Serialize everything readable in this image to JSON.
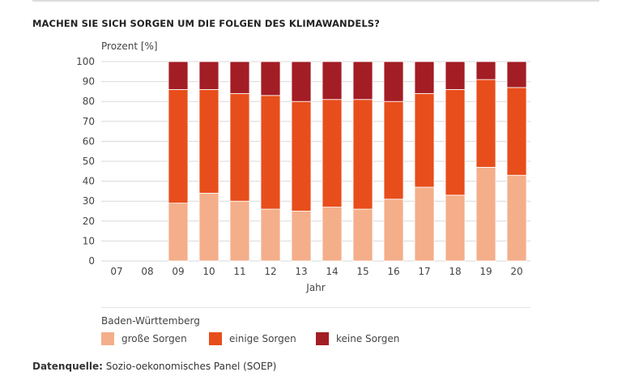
{
  "title": "MACHEN SIE SICH SORGEN UM DIE FOLGEN DES KLIMAWANDELS?",
  "source": {
    "label": "Datenquelle:",
    "text": "Sozio-oekonomisches Panel (SOEP)"
  },
  "chart_data": {
    "type": "bar",
    "stacked": true,
    "title": "MACHEN SIE SICH SORGEN UM DIE FOLGEN DES KLIMAWANDELS?",
    "ylabel": "Prozent [%]",
    "xlabel": "Jahr",
    "ylim": [
      0,
      100
    ],
    "yticks": [
      0,
      10,
      20,
      30,
      40,
      50,
      60,
      70,
      80,
      90,
      100
    ],
    "grid": true,
    "legend_title": "Baden-Württemberg",
    "legend_position": "bottom",
    "categories": [
      "07",
      "08",
      "09",
      "10",
      "11",
      "12",
      "13",
      "14",
      "15",
      "16",
      "17",
      "18",
      "19",
      "20"
    ],
    "series": [
      {
        "name": "große Sorgen",
        "color": "#f4ae8a",
        "values": [
          null,
          null,
          29,
          34,
          30,
          26,
          25,
          27,
          26,
          31,
          37,
          33,
          47,
          43
        ]
      },
      {
        "name": "einige Sorgen",
        "color": "#e84e1b",
        "values": [
          null,
          null,
          57,
          52,
          54,
          57,
          55,
          54,
          55,
          49,
          47,
          53,
          44,
          44
        ]
      },
      {
        "name": "keine Sorgen",
        "color": "#a31d24",
        "values": [
          null,
          null,
          14,
          14,
          16,
          17,
          20,
          19,
          19,
          20,
          16,
          14,
          9,
          13
        ]
      }
    ]
  }
}
